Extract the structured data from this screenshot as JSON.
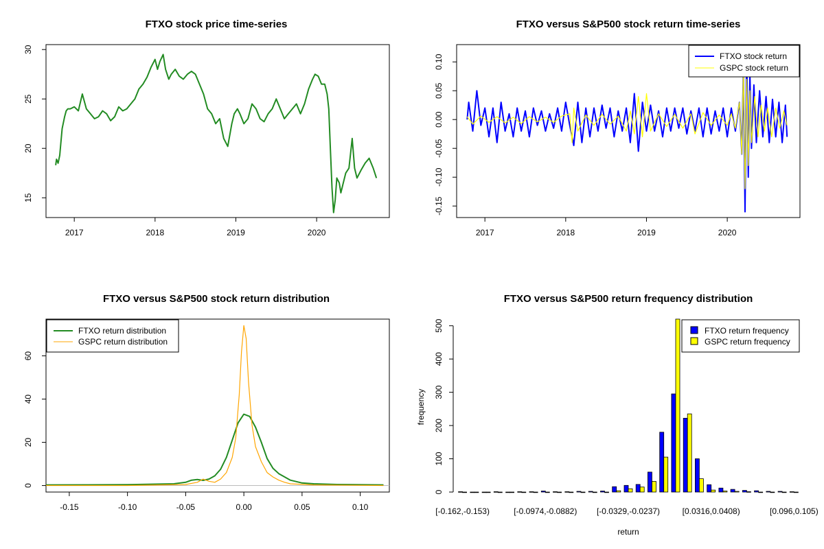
{
  "chart_data": [
    {
      "type": "line",
      "title": "FTXO stock price time-series",
      "x_ticks": [
        "2017",
        "2018",
        "2019",
        "2020"
      ],
      "x_tick_values": [
        2017,
        2018,
        2019,
        2020
      ],
      "xlim": [
        2016.65,
        2020.9
      ],
      "y_ticks": [
        "15",
        "20",
        "25",
        "30"
      ],
      "y_tick_values": [
        15,
        20,
        25,
        30
      ],
      "ylim": [
        13,
        30.5
      ],
      "series": [
        {
          "color": "#228B22",
          "x": [
            2016.77,
            2016.78,
            2016.8,
            2016.82,
            2016.85,
            2016.88,
            2016.9,
            2016.92,
            2016.95,
            2017.0,
            2017.05,
            2017.1,
            2017.15,
            2017.2,
            2017.25,
            2017.3,
            2017.35,
            2017.4,
            2017.45,
            2017.5,
            2017.55,
            2017.6,
            2017.65,
            2017.7,
            2017.75,
            2017.8,
            2017.85,
            2017.9,
            2017.95,
            2018.0,
            2018.03,
            2018.06,
            2018.1,
            2018.13,
            2018.17,
            2018.2,
            2018.25,
            2018.3,
            2018.35,
            2018.4,
            2018.45,
            2018.5,
            2018.55,
            2018.6,
            2018.65,
            2018.7,
            2018.75,
            2018.8,
            2018.85,
            2018.9,
            2018.95,
            2018.98,
            2019.02,
            2019.05,
            2019.1,
            2019.15,
            2019.2,
            2019.25,
            2019.3,
            2019.35,
            2019.4,
            2019.45,
            2019.5,
            2019.55,
            2019.6,
            2019.65,
            2019.7,
            2019.75,
            2019.8,
            2019.85,
            2019.9,
            2019.95,
            2019.98,
            2020.02,
            2020.06,
            2020.1,
            2020.13,
            2020.15,
            2020.17,
            2020.19,
            2020.21,
            2020.23,
            2020.25,
            2020.28,
            2020.3,
            2020.33,
            2020.36,
            2020.4,
            2020.44,
            2020.47,
            2020.5,
            2020.55,
            2020.6,
            2020.65,
            2020.7,
            2020.74
          ],
          "y": [
            18.3,
            18.9,
            18.5,
            19.3,
            22.0,
            23.2,
            23.8,
            24.0,
            24.0,
            24.2,
            23.8,
            25.5,
            24.0,
            23.5,
            23.0,
            23.2,
            23.8,
            23.5,
            22.8,
            23.2,
            24.2,
            23.8,
            24.0,
            24.5,
            25.0,
            26.0,
            26.5,
            27.2,
            28.2,
            29.0,
            28.0,
            28.8,
            29.5,
            28.0,
            27.0,
            27.5,
            28.0,
            27.3,
            27.0,
            27.5,
            27.8,
            27.5,
            26.5,
            25.5,
            24.0,
            23.5,
            22.5,
            23.0,
            21.0,
            20.2,
            22.5,
            23.5,
            24.0,
            23.5,
            22.5,
            23.0,
            24.5,
            24.0,
            23.0,
            22.7,
            23.5,
            24.0,
            25.0,
            24.0,
            23.0,
            23.5,
            24.0,
            24.5,
            23.5,
            24.5,
            26.0,
            27.0,
            27.5,
            27.3,
            26.5,
            26.5,
            25.5,
            24.0,
            20.0,
            16.0,
            13.5,
            14.8,
            17.0,
            16.5,
            15.5,
            16.5,
            17.5,
            18.0,
            21.0,
            18.0,
            17.0,
            17.8,
            18.5,
            19.0,
            18.0,
            17.0
          ]
        }
      ]
    },
    {
      "type": "line",
      "title": "FTXO versus S&P500 stock return time-series",
      "x_ticks": [
        "2017",
        "2018",
        "2019",
        "2020"
      ],
      "x_tick_values": [
        2017,
        2018,
        2019,
        2020
      ],
      "xlim": [
        2016.65,
        2020.9
      ],
      "y_ticks": [
        "-0.15",
        "-0.10",
        "-0.05",
        "0.00",
        "0.05",
        "0.10"
      ],
      "y_tick_values": [
        -0.15,
        -0.1,
        -0.05,
        0.0,
        0.05,
        0.1
      ],
      "ylim": [
        -0.17,
        0.13
      ],
      "legend_position": "top-right",
      "series": [
        {
          "name": "FTXO stock return",
          "color": "#0000FF",
          "x": [
            2016.78,
            2016.8,
            2016.85,
            2016.9,
            2016.95,
            2017.0,
            2017.05,
            2017.1,
            2017.15,
            2017.2,
            2017.25,
            2017.3,
            2017.35,
            2017.4,
            2017.45,
            2017.5,
            2017.55,
            2017.6,
            2017.65,
            2017.7,
            2017.75,
            2017.8,
            2017.85,
            2017.9,
            2017.95,
            2018.0,
            2018.05,
            2018.1,
            2018.15,
            2018.2,
            2018.25,
            2018.3,
            2018.35,
            2018.4,
            2018.45,
            2018.5,
            2018.55,
            2018.6,
            2018.65,
            2018.7,
            2018.75,
            2018.8,
            2018.85,
            2018.9,
            2018.95,
            2019.0,
            2019.05,
            2019.1,
            2019.15,
            2019.2,
            2019.25,
            2019.3,
            2019.35,
            2019.4,
            2019.45,
            2019.5,
            2019.55,
            2019.6,
            2019.65,
            2019.7,
            2019.75,
            2019.8,
            2019.85,
            2019.9,
            2019.95,
            2020.0,
            2020.05,
            2020.1,
            2020.15,
            2020.18,
            2020.2,
            2020.22,
            2020.24,
            2020.26,
            2020.28,
            2020.3,
            2020.33,
            2020.36,
            2020.4,
            2020.44,
            2020.48,
            2020.52,
            2020.56,
            2020.6,
            2020.64,
            2020.68,
            2020.72,
            2020.74
          ],
          "y": [
            0.0,
            0.03,
            -0.02,
            0.05,
            -0.01,
            0.02,
            -0.03,
            0.02,
            -0.04,
            0.03,
            -0.02,
            0.01,
            -0.03,
            0.02,
            -0.02,
            0.015,
            -0.03,
            0.02,
            -0.01,
            0.015,
            -0.02,
            0.01,
            -0.015,
            0.02,
            -0.02,
            0.03,
            -0.01,
            -0.045,
            0.03,
            -0.04,
            0.02,
            -0.03,
            0.02,
            -0.02,
            0.025,
            -0.015,
            0.02,
            -0.03,
            0.015,
            -0.02,
            0.02,
            -0.04,
            0.045,
            -0.055,
            0.03,
            -0.02,
            0.025,
            -0.02,
            0.015,
            -0.03,
            0.02,
            -0.02,
            0.02,
            -0.015,
            0.02,
            -0.025,
            0.015,
            -0.02,
            0.02,
            -0.03,
            0.02,
            -0.025,
            0.015,
            -0.02,
            0.02,
            -0.03,
            0.02,
            -0.02,
            0.03,
            -0.06,
            0.09,
            -0.16,
            0.12,
            -0.1,
            0.08,
            -0.05,
            0.06,
            -0.04,
            0.05,
            -0.03,
            0.04,
            -0.04,
            0.035,
            -0.03,
            0.03,
            -0.04,
            0.025,
            -0.03
          ]
        },
        {
          "name": "GSPC stock return",
          "color": "#FFFF00",
          "x": [
            2016.78,
            2016.85,
            2016.95,
            2017.05,
            2017.15,
            2017.25,
            2017.35,
            2017.45,
            2017.55,
            2017.65,
            2017.75,
            2017.85,
            2017.95,
            2018.05,
            2018.08,
            2018.1,
            2018.15,
            2018.25,
            2018.35,
            2018.45,
            2018.55,
            2018.65,
            2018.75,
            2018.8,
            2018.85,
            2018.9,
            2018.95,
            2019.0,
            2019.05,
            2019.15,
            2019.25,
            2019.35,
            2019.45,
            2019.55,
            2019.6,
            2019.7,
            2019.8,
            2019.9,
            2020.0,
            2020.05,
            2020.1,
            2020.15,
            2020.18,
            2020.2,
            2020.22,
            2020.24,
            2020.26,
            2020.28,
            2020.3,
            2020.34,
            2020.38,
            2020.42,
            2020.46,
            2020.5,
            2020.55,
            2020.6,
            2020.65,
            2020.7,
            2020.74
          ],
          "y": [
            0.005,
            -0.008,
            0.006,
            -0.005,
            0.005,
            -0.006,
            0.004,
            -0.007,
            0.005,
            -0.004,
            0.004,
            -0.005,
            0.006,
            0.01,
            -0.04,
            0.02,
            -0.02,
            0.008,
            -0.01,
            0.009,
            -0.008,
            0.006,
            -0.02,
            0.015,
            -0.025,
            0.04,
            -0.03,
            0.045,
            -0.02,
            0.01,
            -0.012,
            0.009,
            -0.015,
            0.01,
            -0.025,
            0.012,
            -0.01,
            0.008,
            -0.01,
            0.01,
            -0.015,
            0.03,
            -0.06,
            0.09,
            -0.12,
            0.07,
            -0.08,
            0.05,
            -0.04,
            0.04,
            -0.03,
            0.025,
            -0.02,
            0.02,
            -0.03,
            0.02,
            -0.015,
            0.015,
            -0.01
          ]
        }
      ]
    },
    {
      "type": "line",
      "title": "FTXO versus S&P500 stock return distribution",
      "x_ticks": [
        "-0.15",
        "-0.10",
        "-0.05",
        "0.00",
        "0.05",
        "0.10"
      ],
      "x_tick_values": [
        -0.15,
        -0.1,
        -0.05,
        0.0,
        0.05,
        0.1
      ],
      "xlim": [
        -0.17,
        0.125
      ],
      "y_ticks": [
        "0",
        "20",
        "40",
        "60"
      ],
      "y_tick_values": [
        0,
        20,
        40,
        60
      ],
      "ylim": [
        -3,
        77
      ],
      "legend_position": "top-left",
      "series": [
        {
          "name": "FTXO return distribution",
          "color": "#228B22",
          "x": [
            -0.17,
            -0.1,
            -0.06,
            -0.05,
            -0.045,
            -0.04,
            -0.035,
            -0.03,
            -0.025,
            -0.02,
            -0.015,
            -0.01,
            -0.005,
            0.0,
            0.005,
            0.01,
            0.015,
            0.02,
            0.025,
            0.03,
            0.035,
            0.04,
            0.05,
            0.06,
            0.08,
            0.12
          ],
          "y": [
            0.3,
            0.4,
            0.8,
            1.5,
            2.5,
            2.8,
            2.4,
            3.0,
            4.5,
            7.5,
            13.0,
            21.0,
            29.0,
            33.0,
            32.0,
            27.0,
            20.0,
            12.5,
            8.0,
            5.5,
            4.0,
            2.5,
            1.2,
            0.8,
            0.5,
            0.3
          ]
        },
        {
          "name": "GSPC return distribution",
          "color": "#FFA500",
          "x": [
            -0.17,
            -0.1,
            -0.05,
            -0.04,
            -0.035,
            -0.03,
            -0.025,
            -0.02,
            -0.015,
            -0.01,
            -0.007,
            -0.004,
            -0.002,
            0.0,
            0.002,
            0.004,
            0.007,
            0.01,
            0.015,
            0.02,
            0.025,
            0.03,
            0.035,
            0.04,
            0.06,
            0.12
          ],
          "y": [
            0.0,
            0.0,
            0.5,
            1.5,
            3.0,
            2.0,
            1.5,
            3.0,
            6.0,
            13.0,
            22.0,
            42.0,
            62.0,
            74.0,
            68.0,
            48.0,
            28.0,
            18.0,
            11.0,
            6.0,
            4.0,
            2.5,
            1.5,
            0.8,
            0.3,
            0.0
          ]
        }
      ]
    },
    {
      "type": "bar",
      "title": "FTXO versus S&P500 return frequency distribution",
      "xlabel": "return",
      "ylabel": "frequency",
      "category_labels_shown": [
        "[-0.162,-0.153)",
        "[-0.0974,-0.0882)",
        "[-0.0329,-0.0237)",
        "[0.0316,0.0408)",
        "[0.096,0.105)"
      ],
      "category_label_indices": [
        0,
        7,
        14,
        21,
        28
      ],
      "categories": [
        "[-0.162,-0.153)",
        "b2",
        "b3",
        "b4",
        "b5",
        "b6",
        "b7",
        "[-0.0974,-0.0882)",
        "b9",
        "b10",
        "b11",
        "b12",
        "b13",
        "b14",
        "[-0.0329,-0.0237)",
        "b16",
        "b17",
        "b18",
        "b19",
        "b20",
        "b21",
        "[0.0316,0.0408)",
        "b23",
        "b24",
        "b25",
        "b26",
        "b27",
        "b28",
        "[0.096,0.105)"
      ],
      "y_ticks": [
        "0",
        "100",
        "200",
        "300",
        "400",
        "500"
      ],
      "y_tick_values": [
        0,
        100,
        200,
        300,
        400,
        500
      ],
      "ylim": [
        0,
        520
      ],
      "legend_position": "top-right",
      "series": [
        {
          "name": "FTXO return frequency",
          "color": "#0000FF",
          "values": [
            1,
            0,
            0,
            1,
            0,
            1,
            1,
            3,
            1,
            1,
            2,
            2,
            3,
            16,
            20,
            23,
            60,
            180,
            295,
            222,
            100,
            22,
            12,
            8,
            5,
            4,
            2,
            2,
            1
          ]
        },
        {
          "name": "GSPC return frequency",
          "color": "#FFFF00",
          "values": [
            0,
            0,
            0,
            0,
            0,
            0,
            0,
            0,
            0,
            0,
            0,
            0,
            0,
            4,
            10,
            15,
            32,
            105,
            520,
            235,
            40,
            6,
            3,
            2,
            1,
            0,
            0,
            0,
            0
          ]
        }
      ]
    }
  ]
}
